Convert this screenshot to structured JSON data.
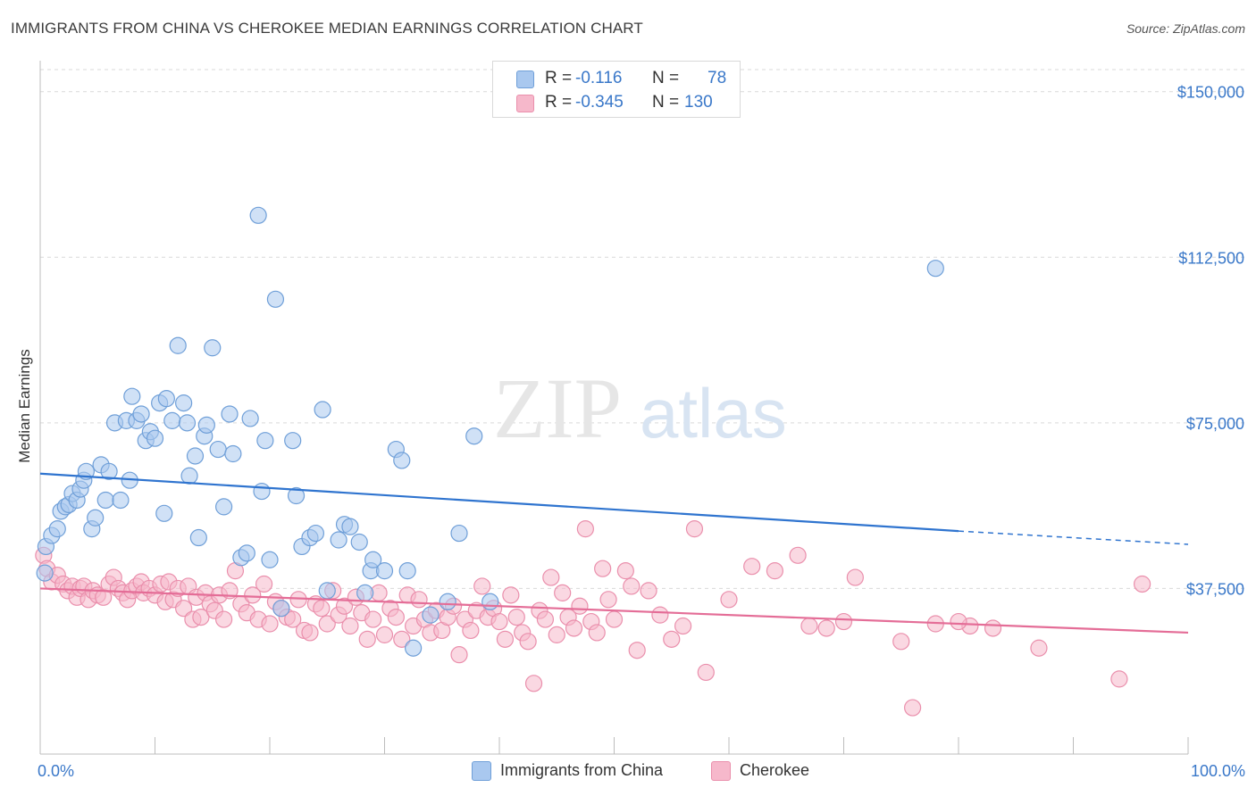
{
  "title": "IMMIGRANTS FROM CHINA VS CHEROKEE MEDIAN EARNINGS CORRELATION CHART",
  "source": "Source: ZipAtlas.com",
  "watermark": {
    "zip": "ZIP",
    "atlas": "atlas"
  },
  "colors": {
    "blue_fill": "#a9c8ef",
    "blue_stroke": "#6f9fd8",
    "blue_line": "#2f74cf",
    "pink_fill": "#f6b8cb",
    "pink_stroke": "#ea8fac",
    "pink_line": "#e46d97",
    "axis_text": "#3a78c9",
    "grid": "#d9d9d9"
  },
  "legend": {
    "rows": [
      {
        "r_label": "R =",
        "r_value": "-0.116",
        "n_label": "N =",
        "n_value": "78",
        "series": "blue"
      },
      {
        "r_label": "R =",
        "r_value": "-0.345",
        "n_label": "N =",
        "n_value": "130",
        "series": "pink"
      }
    ]
  },
  "chart_data": {
    "type": "scatter",
    "title": "IMMIGRANTS FROM CHINA VS CHEROKEE MEDIAN EARNINGS CORRELATION CHART",
    "xlabel": "",
    "ylabel": "Median Earnings",
    "xlim": [
      0,
      100
    ],
    "ylim": [
      0,
      155000
    ],
    "x_tick_labels": [
      "0.0%",
      "100.0%"
    ],
    "y_ticks": [
      37500,
      75000,
      112500,
      150000
    ],
    "y_tick_labels": [
      "$37,500",
      "$75,000",
      "$112,500",
      "$150,000"
    ],
    "grid": true,
    "legend_position": "bottom-center",
    "series": [
      {
        "name": "Immigrants from China",
        "color": "blue",
        "trend": {
          "x": [
            0,
            80
          ],
          "y": [
            63500,
            50500
          ],
          "dashed_to": [
            100,
            47500
          ]
        },
        "points": [
          [
            0.4,
            41000
          ],
          [
            0.5,
            47000
          ],
          [
            1.0,
            49500
          ],
          [
            1.5,
            51000
          ],
          [
            1.8,
            55000
          ],
          [
            2.2,
            56000
          ],
          [
            2.5,
            56500
          ],
          [
            2.8,
            59000
          ],
          [
            3.2,
            57500
          ],
          [
            3.5,
            60000
          ],
          [
            3.8,
            62000
          ],
          [
            4.0,
            64000
          ],
          [
            4.5,
            51000
          ],
          [
            4.8,
            53500
          ],
          [
            5.3,
            65500
          ],
          [
            5.7,
            57500
          ],
          [
            6.0,
            64000
          ],
          [
            6.5,
            75000
          ],
          [
            7.0,
            57500
          ],
          [
            7.5,
            75500
          ],
          [
            7.8,
            62000
          ],
          [
            8.0,
            81000
          ],
          [
            8.4,
            75500
          ],
          [
            8.8,
            77000
          ],
          [
            9.2,
            71000
          ],
          [
            9.6,
            73000
          ],
          [
            10.0,
            71500
          ],
          [
            10.4,
            79500
          ],
          [
            10.8,
            54500
          ],
          [
            11.0,
            80500
          ],
          [
            11.5,
            75500
          ],
          [
            12.0,
            92500
          ],
          [
            12.5,
            79500
          ],
          [
            12.8,
            75000
          ],
          [
            13.0,
            63000
          ],
          [
            13.5,
            67500
          ],
          [
            13.8,
            49000
          ],
          [
            14.3,
            72000
          ],
          [
            14.5,
            74500
          ],
          [
            15.0,
            92000
          ],
          [
            15.5,
            69000
          ],
          [
            16.0,
            56000
          ],
          [
            16.5,
            77000
          ],
          [
            16.8,
            68000
          ],
          [
            17.5,
            44500
          ],
          [
            18.0,
            45500
          ],
          [
            18.3,
            76000
          ],
          [
            19.0,
            122000
          ],
          [
            19.3,
            59500
          ],
          [
            19.6,
            71000
          ],
          [
            20.0,
            44000
          ],
          [
            20.5,
            103000
          ],
          [
            21.0,
            33000
          ],
          [
            22.0,
            71000
          ],
          [
            22.3,
            58500
          ],
          [
            22.8,
            47000
          ],
          [
            23.5,
            49000
          ],
          [
            24.0,
            50000
          ],
          [
            24.6,
            78000
          ],
          [
            25.0,
            37000
          ],
          [
            26.0,
            48500
          ],
          [
            26.5,
            52000
          ],
          [
            27.0,
            51500
          ],
          [
            27.8,
            48000
          ],
          [
            28.3,
            36500
          ],
          [
            28.8,
            41500
          ],
          [
            29.0,
            44000
          ],
          [
            30.0,
            41500
          ],
          [
            31.0,
            69000
          ],
          [
            31.5,
            66500
          ],
          [
            32.0,
            41500
          ],
          [
            32.5,
            24000
          ],
          [
            34.0,
            31500
          ],
          [
            35.5,
            34500
          ],
          [
            36.5,
            50000
          ],
          [
            37.8,
            72000
          ],
          [
            39.2,
            34500
          ],
          [
            78.0,
            110000
          ]
        ]
      },
      {
        "name": "Cherokee",
        "color": "pink",
        "trend": {
          "x": [
            0,
            100
          ],
          "y": [
            37500,
            27500
          ]
        },
        "points": [
          [
            0.3,
            45000
          ],
          [
            0.6,
            42000
          ],
          [
            1.0,
            39000
          ],
          [
            1.5,
            40500
          ],
          [
            2.0,
            38500
          ],
          [
            2.4,
            37000
          ],
          [
            2.8,
            38000
          ],
          [
            3.2,
            35500
          ],
          [
            3.5,
            37500
          ],
          [
            3.8,
            38000
          ],
          [
            4.2,
            35000
          ],
          [
            4.6,
            37000
          ],
          [
            5.0,
            36000
          ],
          [
            5.5,
            35500
          ],
          [
            6.0,
            38500
          ],
          [
            6.4,
            40000
          ],
          [
            6.8,
            37500
          ],
          [
            7.2,
            36500
          ],
          [
            7.6,
            35000
          ],
          [
            8.0,
            37000
          ],
          [
            8.4,
            38000
          ],
          [
            8.8,
            39000
          ],
          [
            9.0,
            36500
          ],
          [
            9.5,
            37500
          ],
          [
            10.0,
            36000
          ],
          [
            10.5,
            38500
          ],
          [
            10.9,
            34500
          ],
          [
            11.2,
            39000
          ],
          [
            11.6,
            35000
          ],
          [
            12.0,
            37500
          ],
          [
            12.5,
            33000
          ],
          [
            12.9,
            38000
          ],
          [
            13.3,
            30500
          ],
          [
            13.6,
            35500
          ],
          [
            14.0,
            31000
          ],
          [
            14.4,
            36500
          ],
          [
            14.8,
            34000
          ],
          [
            15.2,
            32500
          ],
          [
            15.6,
            36000
          ],
          [
            16.0,
            30500
          ],
          [
            16.5,
            37000
          ],
          [
            17.0,
            41500
          ],
          [
            17.5,
            34000
          ],
          [
            18.0,
            32000
          ],
          [
            18.5,
            36000
          ],
          [
            19.0,
            30500
          ],
          [
            19.5,
            38500
          ],
          [
            20.0,
            29500
          ],
          [
            20.5,
            34500
          ],
          [
            21.0,
            33000
          ],
          [
            21.5,
            31000
          ],
          [
            22.0,
            30500
          ],
          [
            22.5,
            35000
          ],
          [
            23.0,
            28000
          ],
          [
            23.5,
            27500
          ],
          [
            24.0,
            34000
          ],
          [
            24.5,
            33000
          ],
          [
            25.0,
            29500
          ],
          [
            25.5,
            37000
          ],
          [
            26.0,
            31500
          ],
          [
            26.5,
            33500
          ],
          [
            27.0,
            29000
          ],
          [
            27.5,
            35500
          ],
          [
            28.0,
            32000
          ],
          [
            28.5,
            26000
          ],
          [
            29.0,
            30500
          ],
          [
            29.5,
            36500
          ],
          [
            30.0,
            27000
          ],
          [
            30.5,
            33000
          ],
          [
            31.0,
            31000
          ],
          [
            31.5,
            26000
          ],
          [
            32.0,
            36000
          ],
          [
            32.5,
            29000
          ],
          [
            33.0,
            35000
          ],
          [
            33.5,
            30500
          ],
          [
            34.0,
            27500
          ],
          [
            34.5,
            32500
          ],
          [
            35.0,
            28000
          ],
          [
            35.5,
            31000
          ],
          [
            36.0,
            33500
          ],
          [
            36.5,
            22500
          ],
          [
            37.0,
            30500
          ],
          [
            37.5,
            28000
          ],
          [
            38.0,
            32500
          ],
          [
            38.5,
            38000
          ],
          [
            39.0,
            31000
          ],
          [
            39.5,
            33000
          ],
          [
            40.0,
            30000
          ],
          [
            40.5,
            26000
          ],
          [
            41.0,
            36000
          ],
          [
            41.5,
            31000
          ],
          [
            42.0,
            27500
          ],
          [
            42.5,
            25500
          ],
          [
            43.0,
            16000
          ],
          [
            43.5,
            32500
          ],
          [
            44.0,
            30500
          ],
          [
            44.5,
            40000
          ],
          [
            45.0,
            27000
          ],
          [
            45.5,
            36500
          ],
          [
            46.0,
            31000
          ],
          [
            46.5,
            28500
          ],
          [
            47.0,
            33500
          ],
          [
            47.5,
            51000
          ],
          [
            48.0,
            30000
          ],
          [
            48.5,
            27500
          ],
          [
            49.0,
            42000
          ],
          [
            49.5,
            35000
          ],
          [
            50.0,
            30500
          ],
          [
            51.0,
            41500
          ],
          [
            51.5,
            38000
          ],
          [
            52.0,
            23500
          ],
          [
            53.0,
            37000
          ],
          [
            54.0,
            31500
          ],
          [
            55.0,
            26000
          ],
          [
            56.0,
            29000
          ],
          [
            57.0,
            51000
          ],
          [
            58.0,
            18500
          ],
          [
            60.0,
            35000
          ],
          [
            62.0,
            42500
          ],
          [
            64.0,
            41500
          ],
          [
            66.0,
            45000
          ],
          [
            67.0,
            29000
          ],
          [
            68.5,
            28500
          ],
          [
            70.0,
            30000
          ],
          [
            71.0,
            40000
          ],
          [
            75.0,
            25500
          ],
          [
            76.0,
            10500
          ],
          [
            78.0,
            29500
          ],
          [
            81.0,
            29000
          ],
          [
            83.0,
            28500
          ],
          [
            87.0,
            24000
          ],
          [
            94.0,
            17000
          ],
          [
            96.0,
            38500
          ],
          [
            80.0,
            30000
          ]
        ]
      }
    ]
  }
}
